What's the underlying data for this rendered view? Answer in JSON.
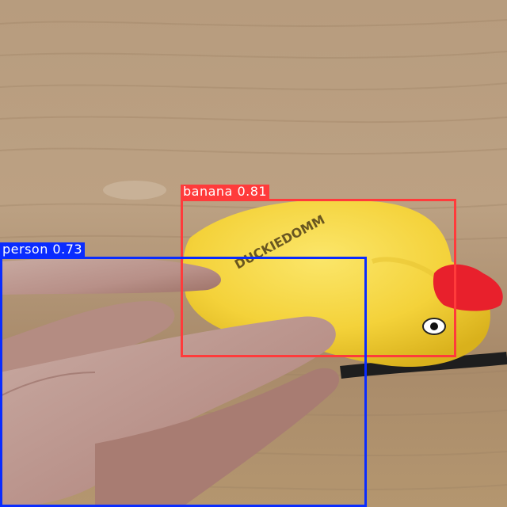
{
  "detections": [
    {
      "label": "banana",
      "confidence": "0.81",
      "caption": "banana 0.81",
      "color": "#ff3b3b"
    },
    {
      "label": "person",
      "confidence": "0.73",
      "caption": "person 0.73",
      "color": "#0a2cff"
    }
  ],
  "scene": {
    "background": "wooden table",
    "subject": "yellow rubber duck toy held between fingers",
    "toy_print": "DUCKIEDOMM"
  }
}
